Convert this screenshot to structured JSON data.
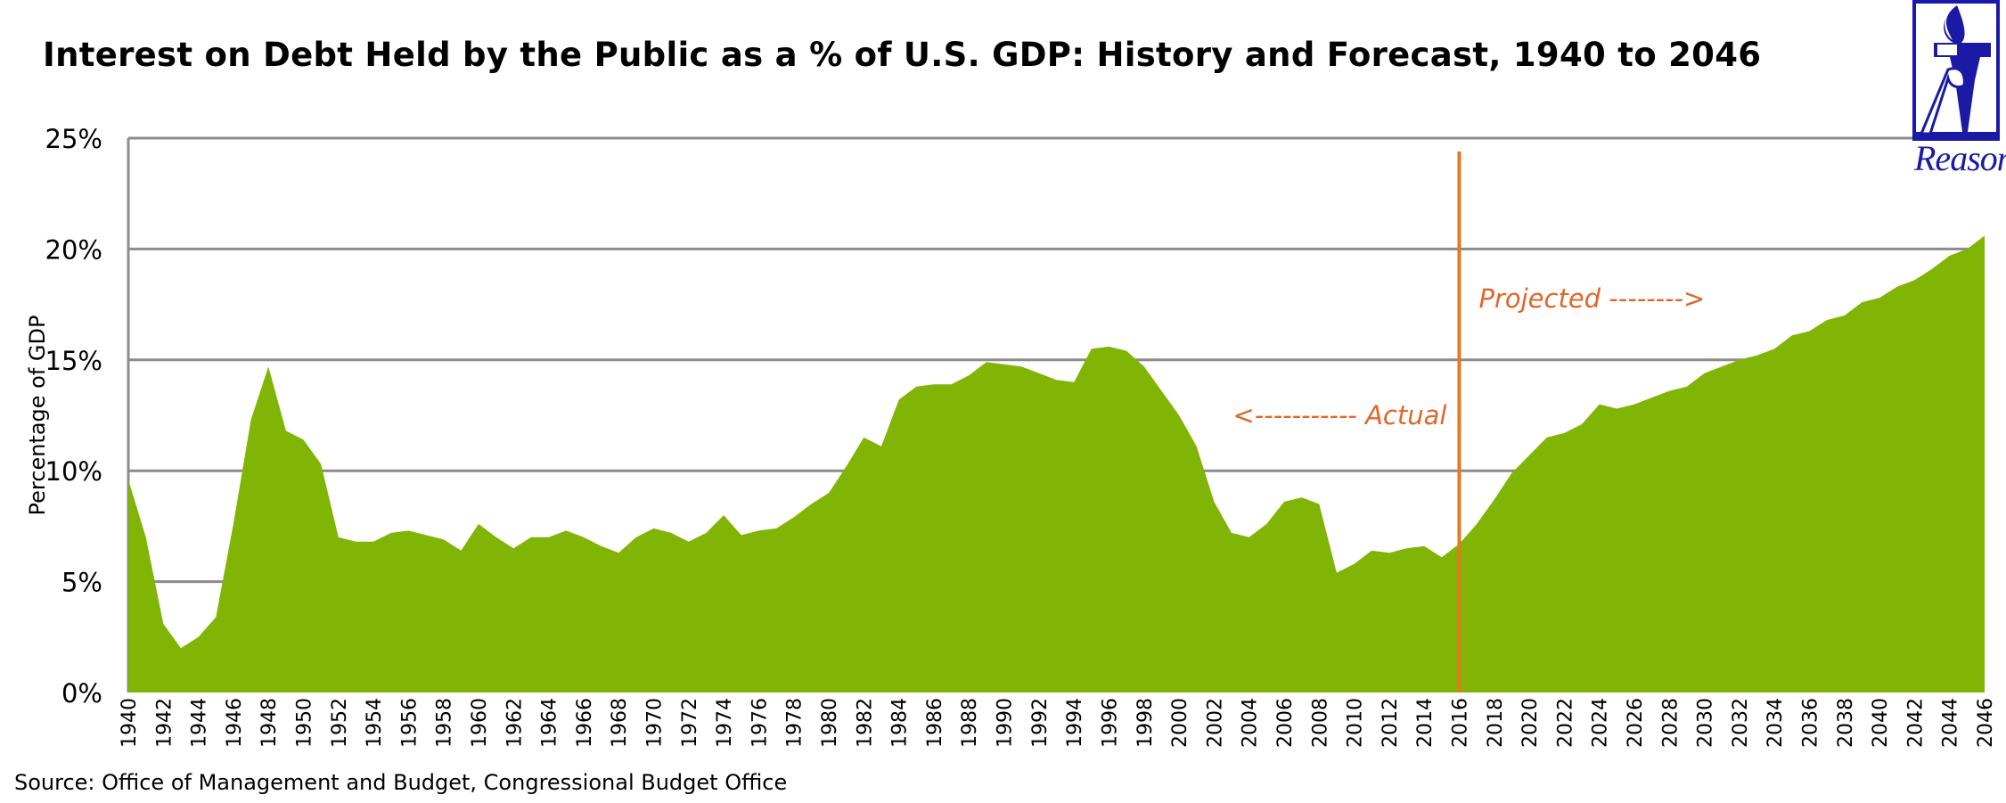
{
  "title": "Interest on Debt Held by the Public as a % of U.S. GDP: History and Forecast, 1940 to 2046",
  "source": "Source: Office of Management and Budget, Congressional Budget Office",
  "logo": {
    "text": "Reason",
    "color": "#1a1aa6"
  },
  "colors": {
    "area": "#80b505",
    "grid": "#8c8c8c",
    "divider": "#e87722",
    "annotation": "#e0662a"
  },
  "chart_data": {
    "type": "area",
    "title": "Interest on Debt Held by the Public as a % of U.S. GDP: History and Forecast, 1940 to 2046",
    "xlabel": "",
    "ylabel": "Percentage of GDP",
    "ylim": [
      0,
      25
    ],
    "xlim": [
      1940,
      2046
    ],
    "yticks": [
      "0%",
      "5%",
      "10%",
      "15%",
      "20%",
      "25%"
    ],
    "grid": true,
    "legend": "none",
    "divider_year": 2016,
    "annotations": {
      "actual": "<----------- Actual",
      "projected": "Projected -------->"
    },
    "x": [
      1940,
      1941,
      1942,
      1943,
      1944,
      1945,
      1946,
      1947,
      1948,
      1949,
      1950,
      1951,
      1952,
      1953,
      1954,
      1955,
      1956,
      1957,
      1958,
      1959,
      1960,
      1961,
      1962,
      1963,
      1964,
      1965,
      1966,
      1967,
      1968,
      1969,
      1970,
      1971,
      1972,
      1973,
      1974,
      1975,
      1976,
      1977,
      1978,
      1979,
      1980,
      1981,
      1982,
      1983,
      1984,
      1985,
      1986,
      1987,
      1988,
      1989,
      1990,
      1991,
      1992,
      1993,
      1994,
      1995,
      1996,
      1997,
      1998,
      1999,
      2000,
      2001,
      2002,
      2003,
      2004,
      2005,
      2006,
      2007,
      2008,
      2009,
      2010,
      2011,
      2012,
      2013,
      2014,
      2015,
      2016,
      2017,
      2018,
      2019,
      2020,
      2021,
      2022,
      2023,
      2024,
      2025,
      2026,
      2027,
      2028,
      2029,
      2030,
      2031,
      2032,
      2033,
      2034,
      2035,
      2036,
      2037,
      2038,
      2039,
      2040,
      2041,
      2042,
      2043,
      2044,
      2045,
      2046
    ],
    "values": [
      9.6,
      7.0,
      3.1,
      2.0,
      2.5,
      3.4,
      7.6,
      12.3,
      14.7,
      11.8,
      11.4,
      10.3,
      7.0,
      6.8,
      6.8,
      7.2,
      7.3,
      7.1,
      6.9,
      6.4,
      7.6,
      7.0,
      6.5,
      7.0,
      7.0,
      7.3,
      7.0,
      6.6,
      6.3,
      7.0,
      7.4,
      7.2,
      6.8,
      7.2,
      8.0,
      7.1,
      7.3,
      7.4,
      7.9,
      8.5,
      9.0,
      10.2,
      11.5,
      11.1,
      13.2,
      13.8,
      13.9,
      13.9,
      14.3,
      14.9,
      14.8,
      14.7,
      14.4,
      14.1,
      14.0,
      15.5,
      15.6,
      15.4,
      14.7,
      13.6,
      12.5,
      11.1,
      8.6,
      7.2,
      7.0,
      7.6,
      8.6,
      8.8,
      8.5,
      5.4,
      5.8,
      6.4,
      6.3,
      6.5,
      6.6,
      6.1,
      6.7,
      7.6,
      8.7,
      9.9,
      10.7,
      11.5,
      11.7,
      12.1,
      13.0,
      12.8,
      13.0,
      13.3,
      13.6,
      13.8,
      14.4,
      14.7,
      15.0,
      15.2,
      15.5,
      16.1,
      16.3,
      16.8,
      17.0,
      17.6,
      17.8,
      18.3,
      18.6,
      19.1,
      19.7,
      20.0,
      20.6
    ]
  }
}
